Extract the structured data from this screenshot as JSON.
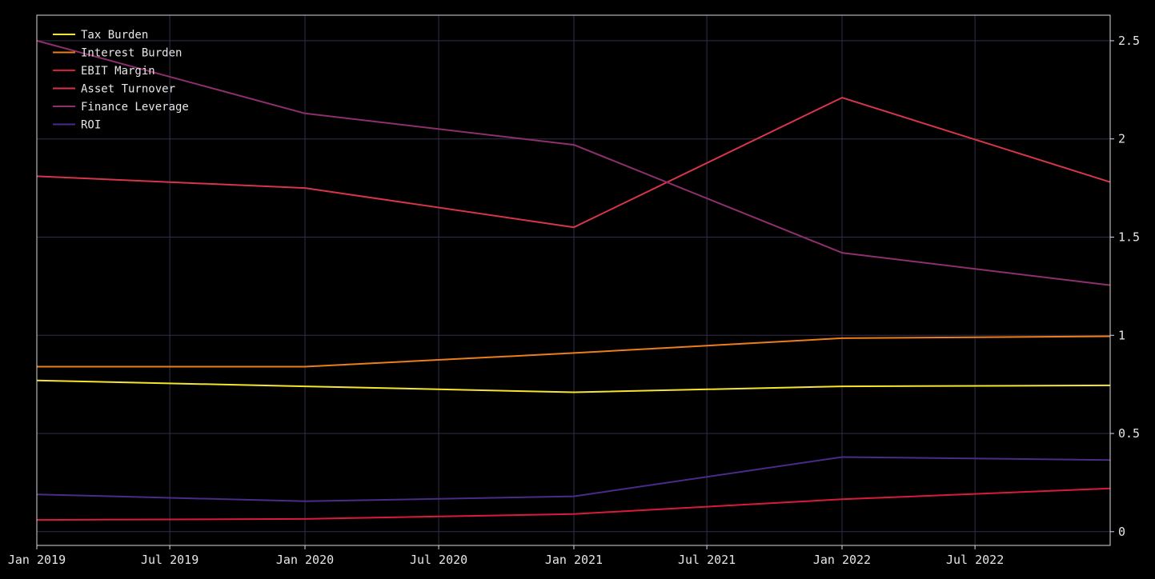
{
  "chart_data": {
    "type": "line",
    "title": "",
    "xlabel": "",
    "ylabel": "",
    "x": [
      "2019-01-01",
      "2020-01-01",
      "2021-01-01",
      "2022-01-01",
      "2023-01-01"
    ],
    "xlim": [
      "2019-01-01",
      "2023-01-01"
    ],
    "ylim": [
      -0.07,
      2.63
    ],
    "x_ticks": [
      {
        "date": "2019-01-01",
        "label": "Jan 2019"
      },
      {
        "date": "2019-07-01",
        "label": "Jul 2019"
      },
      {
        "date": "2020-01-01",
        "label": "Jan 2020"
      },
      {
        "date": "2020-07-01",
        "label": "Jul 2020"
      },
      {
        "date": "2021-01-01",
        "label": "Jan 2021"
      },
      {
        "date": "2021-07-01",
        "label": "Jul 2021"
      },
      {
        "date": "2022-01-01",
        "label": "Jan 2022"
      },
      {
        "date": "2022-07-01",
        "label": "Jul 2022"
      }
    ],
    "y_ticks": [
      {
        "value": 0,
        "label": "0"
      },
      {
        "value": 0.5,
        "label": "0.5"
      },
      {
        "value": 1,
        "label": "1"
      },
      {
        "value": 1.5,
        "label": "1.5"
      },
      {
        "value": 2,
        "label": "2"
      },
      {
        "value": 2.5,
        "label": "2.5"
      }
    ],
    "y_axis_side": "right",
    "grid": true,
    "legend_position": "top-left",
    "series": [
      {
        "name": "Tax Burden",
        "color": "#f5e52b",
        "values": [
          0.77,
          0.74,
          0.71,
          0.74,
          0.745
        ]
      },
      {
        "name": "Interest Burden",
        "color": "#ee7d1a",
        "values": [
          0.84,
          0.84,
          0.91,
          0.985,
          0.995
        ]
      },
      {
        "name": "EBIT Margin",
        "color": "#d81b3a",
        "values": [
          0.06,
          0.065,
          0.09,
          0.165,
          0.22
        ]
      },
      {
        "name": "Asset Turnover",
        "color": "#d6354a",
        "values": [
          1.81,
          1.75,
          1.55,
          2.21,
          1.78
        ]
      },
      {
        "name": "Finance Leverage",
        "color": "#8e2f6e",
        "values": [
          2.5,
          2.13,
          1.97,
          1.42,
          1.255
        ]
      },
      {
        "name": "ROI",
        "color": "#4a2a8a",
        "values": [
          0.19,
          0.155,
          0.18,
          0.38,
          0.365
        ]
      }
    ]
  }
}
